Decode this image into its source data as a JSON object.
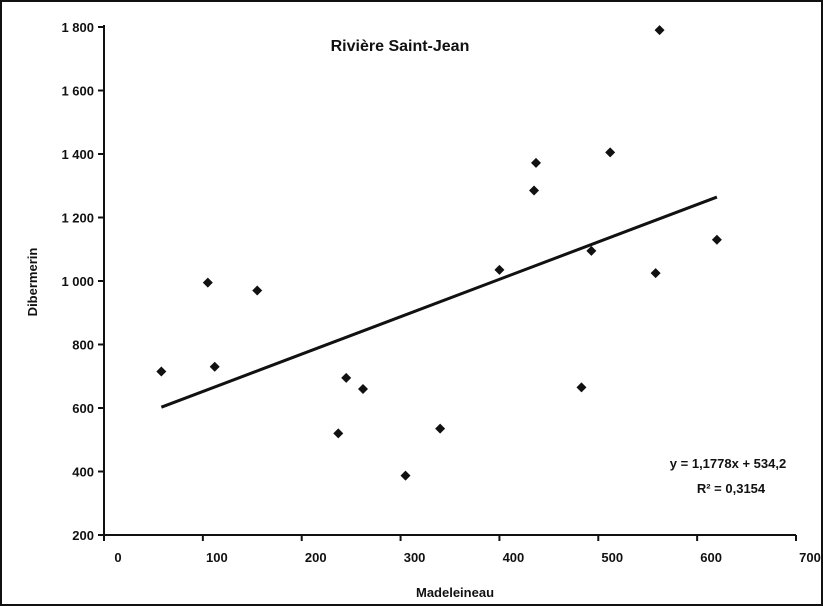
{
  "chart_data": {
    "type": "scatter",
    "title": "Rivière Saint-Jean",
    "xlabel": "Madeleineau",
    "ylabel": "Dibermerin",
    "xlim": [
      0,
      700
    ],
    "ylim": [
      200,
      1800
    ],
    "x_ticks": [
      0,
      100,
      200,
      300,
      400,
      500,
      600,
      700
    ],
    "y_ticks": [
      200,
      400,
      600,
      800,
      1000,
      1200,
      1400,
      1600,
      1800
    ],
    "x_tick_labels": [
      "0",
      "100",
      "200",
      "300",
      "400",
      "500",
      "600",
      "700"
    ],
    "y_tick_labels": [
      "200",
      "400",
      "600",
      "800",
      "1 000",
      "1 200",
      "1 400",
      "1 600",
      "1 800"
    ],
    "grid": false,
    "points": [
      {
        "x": 58,
        "y": 715
      },
      {
        "x": 105,
        "y": 995
      },
      {
        "x": 112,
        "y": 730
      },
      {
        "x": 155,
        "y": 970
      },
      {
        "x": 237,
        "y": 520
      },
      {
        "x": 245,
        "y": 695
      },
      {
        "x": 262,
        "y": 660
      },
      {
        "x": 305,
        "y": 387
      },
      {
        "x": 340,
        "y": 535
      },
      {
        "x": 400,
        "y": 1035
      },
      {
        "x": 435,
        "y": 1285
      },
      {
        "x": 437,
        "y": 1372
      },
      {
        "x": 483,
        "y": 665
      },
      {
        "x": 493,
        "y": 1095
      },
      {
        "x": 512,
        "y": 1405
      },
      {
        "x": 558,
        "y": 1025
      },
      {
        "x": 562,
        "y": 1790
      },
      {
        "x": 620,
        "y": 1130
      }
    ],
    "trendline": {
      "slope": 1.1778,
      "intercept": 534.2,
      "x_start": 58,
      "x_end": 620
    },
    "equation_text": "y = 1,1778x + 534,2",
    "r2_text": "R² = 0,3154"
  }
}
